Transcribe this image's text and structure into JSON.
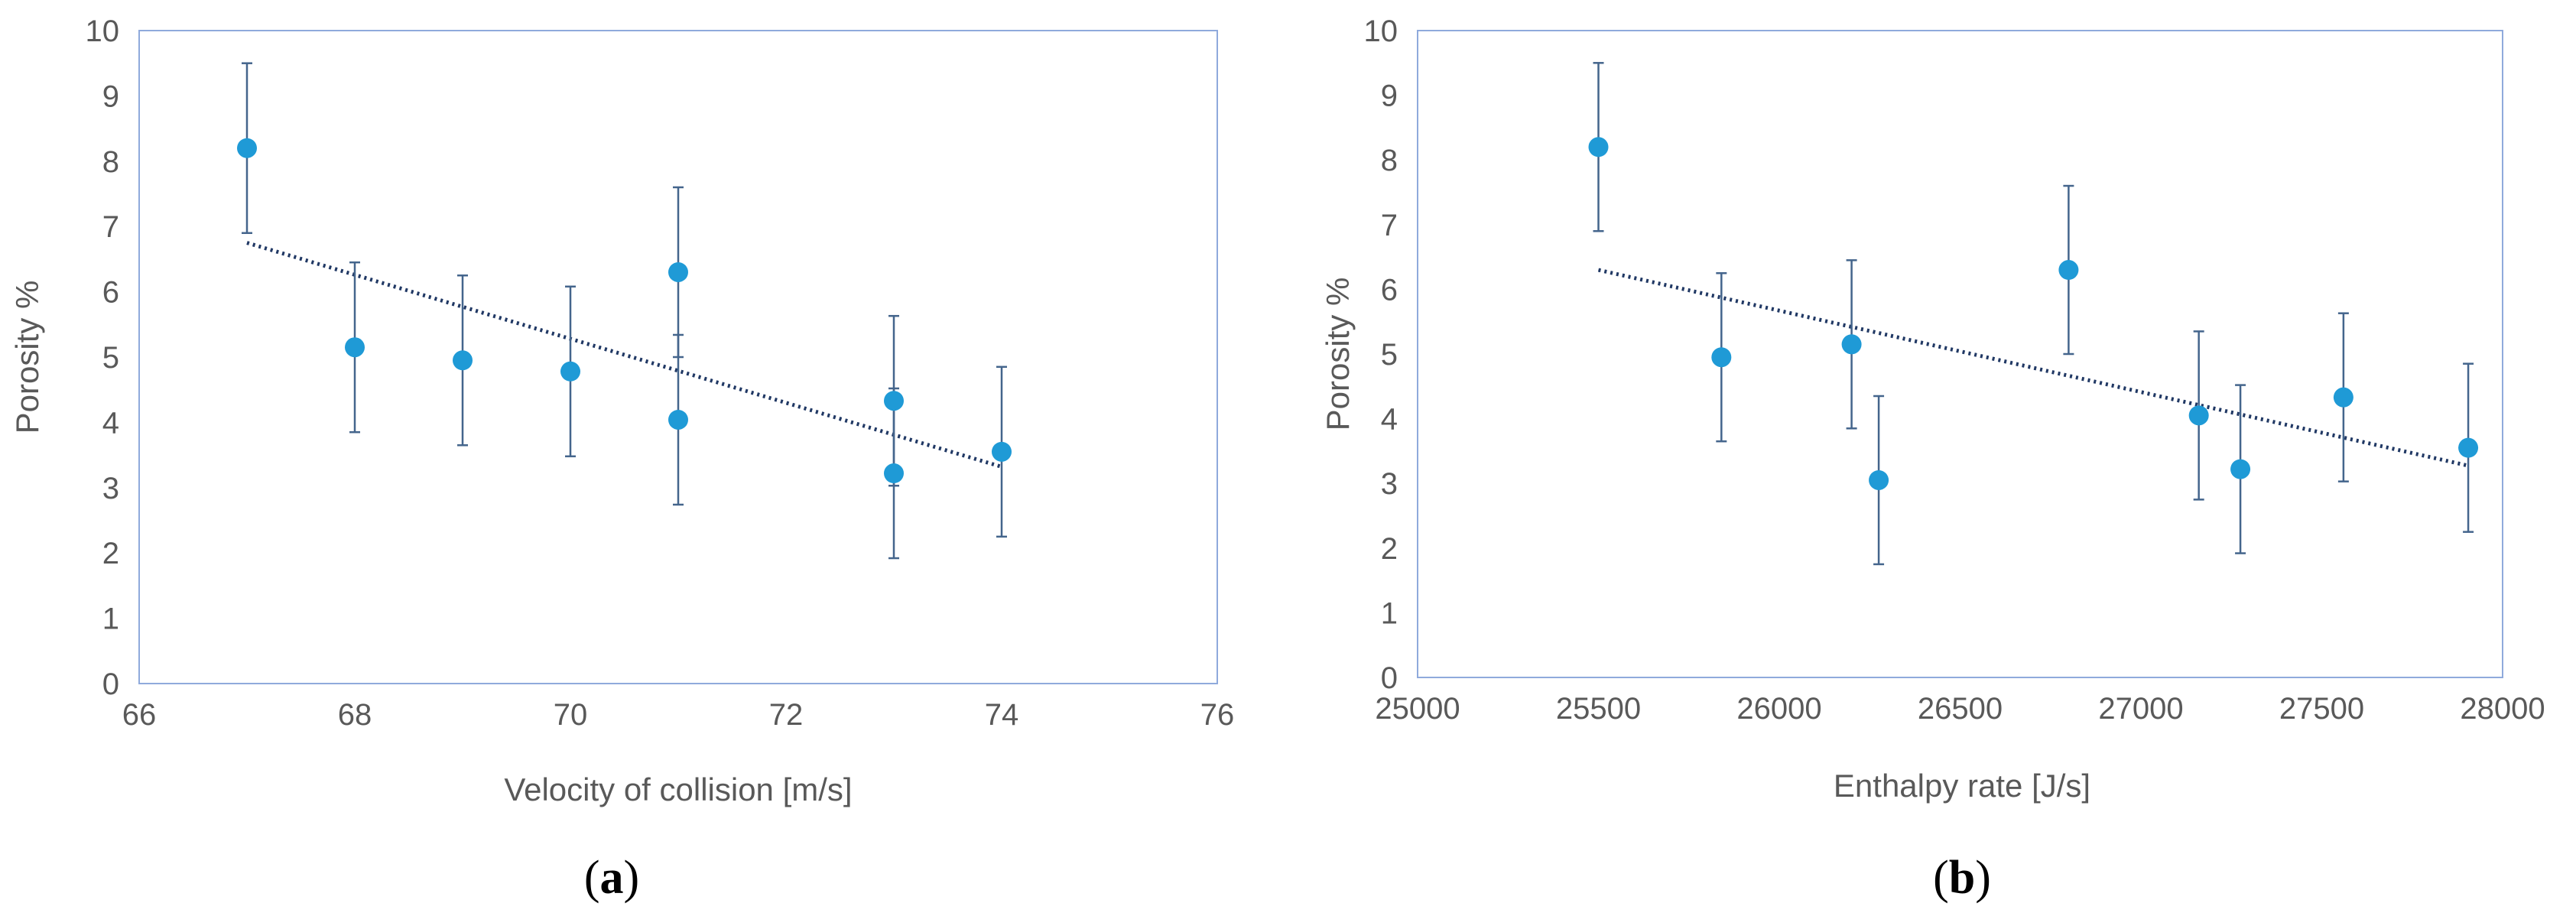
{
  "colors": {
    "point": "#1f9ad6",
    "errorbar": "#44658c",
    "trendline": "#203864",
    "frame": "#8faadc",
    "text": "#595959"
  },
  "chart_data": [
    {
      "type": "scatter",
      "caption": {
        "open": "(",
        "letter": "a",
        "close": ")"
      },
      "xlabel": "Velocity of collision [m/s]",
      "ylabel": "Porosity %",
      "xlim": [
        66,
        76
      ],
      "ylim": [
        0,
        10
      ],
      "xticks": [
        "66",
        "68",
        "70",
        "72",
        "74",
        "76"
      ],
      "yticks": [
        "0",
        "1",
        "2",
        "3",
        "4",
        "5",
        "6",
        "7",
        "8",
        "9",
        "10"
      ],
      "grid": false,
      "points": [
        {
          "x": 67,
          "y": 8.2,
          "err": 1.3
        },
        {
          "x": 68,
          "y": 5.15,
          "err": 1.3
        },
        {
          "x": 69,
          "y": 4.95,
          "err": 1.3
        },
        {
          "x": 70,
          "y": 4.78,
          "err": 1.3
        },
        {
          "x": 71,
          "y": 6.3,
          "err": 1.3
        },
        {
          "x": 71,
          "y": 4.04,
          "err": 1.3
        },
        {
          "x": 73,
          "y": 4.33,
          "err": 1.3
        },
        {
          "x": 73,
          "y": 3.22,
          "err": 1.3
        },
        {
          "x": 74,
          "y": 3.55,
          "err": 1.3
        }
      ],
      "trendline": {
        "style": "dotted linear",
        "x": [
          67,
          74
        ],
        "y": [
          6.75,
          3.32
        ]
      }
    },
    {
      "type": "scatter",
      "caption": {
        "open": "(",
        "letter": "b",
        "close": ")"
      },
      "xlabel": "Enthalpy rate [J/s]",
      "ylabel": "Porosity %",
      "xlim": [
        25000,
        28000
      ],
      "ylim": [
        0,
        10
      ],
      "xticks": [
        "25000",
        "25500",
        "26000",
        "26500",
        "27000",
        "27500",
        "28000"
      ],
      "yticks": [
        "0",
        "1",
        "2",
        "3",
        "4",
        "5",
        "6",
        "7",
        "8",
        "9",
        "10"
      ],
      "grid": false,
      "points": [
        {
          "x": 25500,
          "y": 8.2,
          "err": 1.3
        },
        {
          "x": 25840,
          "y": 4.95,
          "err": 1.3
        },
        {
          "x": 26200,
          "y": 5.15,
          "err": 1.3
        },
        {
          "x": 26275,
          "y": 3.05,
          "err": 1.3
        },
        {
          "x": 26800,
          "y": 6.3,
          "err": 1.3
        },
        {
          "x": 27160,
          "y": 4.05,
          "err": 1.3
        },
        {
          "x": 27275,
          "y": 3.22,
          "err": 1.3
        },
        {
          "x": 27560,
          "y": 4.33,
          "err": 1.3
        },
        {
          "x": 27905,
          "y": 3.55,
          "err": 1.3
        }
      ],
      "trendline": {
        "style": "dotted linear",
        "x": [
          25500,
          27900
        ],
        "y": [
          6.3,
          3.28
        ]
      }
    }
  ]
}
